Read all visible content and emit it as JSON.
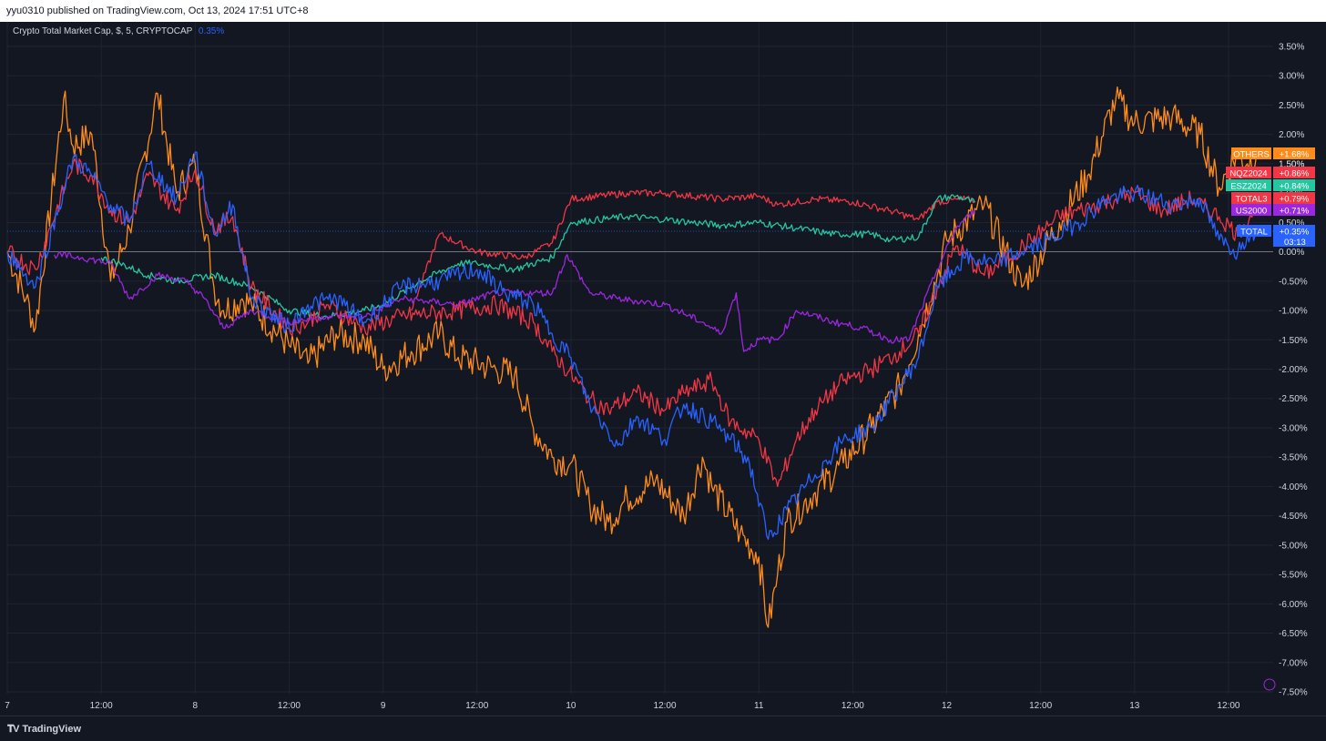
{
  "header": {
    "publisher": "yyu0310 published on TradingView.com, Oct 13, 2024 17:51 UTC+8"
  },
  "legend": {
    "title": "Crypto Total Market Cap, $, 5, CRYPTOCAP",
    "value": "0.35%"
  },
  "footer": {
    "brand": "TradingView",
    "brand_icon": "tradingview-logo-icon"
  },
  "colors": {
    "background": "#131722",
    "grid": "#1f2430",
    "axis_text": "#d1d4dc",
    "others": "#ff8c1a",
    "nqz2024": "#f23645",
    "esz2024": "#26c6a0",
    "total3": "#f23645",
    "us2000": "#9c27e0",
    "total": "#2962ff"
  },
  "chart_data": {
    "type": "line",
    "title": "Crypto Total Market Cap, $, 5, CRYPTOCAP",
    "scale": "percent",
    "ylim": [
      -7.6,
      3.8
    ],
    "y_ticks": [
      "3.50%",
      "3.00%",
      "2.50%",
      "2.00%",
      "1.50%",
      "1.00%",
      "0.50%",
      "0.00%",
      "-0.50%",
      "-1.00%",
      "-1.50%",
      "-2.00%",
      "-2.50%",
      "-3.00%",
      "-3.50%",
      "-4.00%",
      "-4.50%",
      "-5.00%",
      "-5.50%",
      "-6.00%",
      "-6.50%",
      "-7.00%",
      "-7.50%"
    ],
    "y_tick_values": [
      3.5,
      3.0,
      2.5,
      2.0,
      1.5,
      1.0,
      0.5,
      0.0,
      -0.5,
      -1.0,
      -1.5,
      -2.0,
      -2.5,
      -3.0,
      -3.5,
      -4.0,
      -4.5,
      -5.0,
      -5.5,
      -6.0,
      -6.5,
      -7.0,
      -7.5
    ],
    "xlim": [
      7.0,
      13.7
    ],
    "x_ticks": [
      "7",
      "12:00",
      "8",
      "12:00",
      "9",
      "12:00",
      "10",
      "12:00",
      "11",
      "12:00",
      "12",
      "12:00",
      "13",
      "12:00"
    ],
    "x_tick_values": [
      7.0,
      7.5,
      8.0,
      8.5,
      9.0,
      9.5,
      10.0,
      10.5,
      11.0,
      11.5,
      12.0,
      12.5,
      13.0,
      13.5
    ],
    "grid": true,
    "series": [
      {
        "name": "OTHERS",
        "color": "#ff8c1a",
        "last_label": "+1.68%",
        "last_value": 1.68,
        "x": [
          7.0,
          7.1,
          7.15,
          7.3,
          7.35,
          7.45,
          7.55,
          7.65,
          7.8,
          7.9,
          8.0,
          8.1,
          8.15,
          8.25,
          8.3,
          8.5,
          8.6,
          8.75,
          8.9,
          9.0,
          9.15,
          9.3,
          9.4,
          9.6,
          9.7,
          9.8,
          9.9,
          10.0,
          10.1,
          10.2,
          10.3,
          10.45,
          10.6,
          10.7,
          10.75,
          10.9,
          11.0,
          11.05,
          11.1,
          11.15,
          11.3,
          11.45,
          11.6,
          11.75,
          11.85,
          11.95,
          12.0,
          12.2,
          12.4,
          12.6,
          12.75,
          12.9,
          13.0,
          13.2,
          13.35,
          13.45,
          13.55,
          13.6,
          13.65
        ],
        "y": [
          0.0,
          -0.8,
          -1.3,
          2.6,
          1.8,
          2.0,
          -0.5,
          0.4,
          2.7,
          1.0,
          1.5,
          -0.6,
          -1.0,
          -0.8,
          -0.9,
          -1.6,
          -1.9,
          -1.4,
          -1.5,
          -2.0,
          -1.7,
          -1.4,
          -1.8,
          -2.0,
          -2.1,
          -3.0,
          -3.5,
          -3.6,
          -4.3,
          -4.6,
          -4.2,
          -3.9,
          -4.5,
          -3.5,
          -4.0,
          -4.8,
          -5.2,
          -6.4,
          -5.5,
          -4.6,
          -4.1,
          -3.6,
          -3.0,
          -2.3,
          -1.4,
          -0.4,
          0.2,
          0.8,
          -0.6,
          0.5,
          1.3,
          2.6,
          2.2,
          2.3,
          2.0,
          1.1,
          1.7,
          1.5,
          1.68
        ]
      },
      {
        "name": "NQZ2024",
        "color": "#f23645",
        "last_label": "+0.86%",
        "last_value": 0.86,
        "x": [
          9.15,
          9.3,
          9.5,
          9.75,
          9.9,
          10.0,
          10.3,
          10.5,
          10.8,
          11.0,
          11.1,
          11.3,
          11.5,
          11.7,
          11.85,
          11.95,
          12.1,
          12.15
        ],
        "y": [
          -1.0,
          0.3,
          0.0,
          -0.1,
          0.15,
          0.9,
          1.0,
          1.0,
          0.9,
          0.95,
          0.8,
          0.9,
          0.85,
          0.7,
          0.55,
          0.85,
          0.9,
          0.86
        ]
      },
      {
        "name": "ESZ2024",
        "color": "#26c6a0",
        "last_label": "+0.84%",
        "last_value": 0.84,
        "x": [
          7.5,
          7.6,
          7.75,
          7.9,
          8.1,
          8.3,
          8.5,
          8.7,
          8.9,
          9.0,
          9.2,
          9.4,
          9.5,
          9.7,
          9.9,
          10.0,
          10.3,
          10.5,
          10.8,
          11.0,
          11.2,
          11.4,
          11.6,
          11.7,
          11.85,
          11.95,
          12.05,
          12.15
        ],
        "y": [
          -0.1,
          -0.2,
          -0.4,
          -0.5,
          -0.4,
          -0.6,
          -1.0,
          -1.1,
          -1.0,
          -0.9,
          -0.5,
          -0.2,
          -0.2,
          -0.3,
          -0.1,
          0.5,
          0.6,
          0.55,
          0.45,
          0.5,
          0.4,
          0.3,
          0.3,
          0.2,
          0.25,
          0.9,
          0.95,
          0.84
        ]
      },
      {
        "name": "TOTAL3",
        "color": "#f23645",
        "last_label": "+0.79%",
        "last_value": 0.79,
        "x": [
          7.0,
          7.15,
          7.35,
          7.45,
          7.55,
          7.65,
          7.75,
          7.9,
          8.0,
          8.1,
          8.2,
          8.3,
          8.5,
          8.6,
          8.7,
          8.9,
          9.1,
          9.4,
          9.6,
          9.8,
          9.9,
          10.1,
          10.2,
          10.35,
          10.5,
          10.6,
          10.75,
          10.85,
          11.0,
          11.1,
          11.2,
          11.3,
          11.45,
          11.6,
          11.75,
          11.85,
          11.95,
          12.05,
          12.2,
          12.45,
          12.6,
          12.8,
          12.9,
          13.0,
          13.15,
          13.3,
          13.45,
          13.55,
          13.65
        ],
        "y": [
          0.0,
          -0.3,
          1.5,
          1.3,
          0.7,
          0.5,
          1.3,
          0.7,
          1.4,
          0.4,
          0.6,
          -0.6,
          -1.3,
          -1.2,
          -0.9,
          -1.3,
          -1.1,
          -1.0,
          -0.9,
          -1.2,
          -1.7,
          -2.5,
          -2.7,
          -2.4,
          -2.7,
          -2.4,
          -2.2,
          -2.9,
          -3.2,
          -4.0,
          -3.2,
          -2.7,
          -2.2,
          -2.0,
          -1.7,
          -1.4,
          -0.6,
          0.1,
          -0.4,
          0.2,
          0.6,
          0.8,
          0.9,
          1.0,
          0.7,
          0.9,
          0.6,
          0.3,
          0.79
        ]
      },
      {
        "name": "US2000",
        "color": "#9c27e0",
        "last_label": "+0.71%",
        "last_value": 0.71,
        "x": [
          7.25,
          7.4,
          7.55,
          7.65,
          7.8,
          7.95,
          8.05,
          8.15,
          8.3,
          8.5,
          8.7,
          8.9,
          9.1,
          9.4,
          9.6,
          9.8,
          9.9,
          9.98,
          10.1,
          10.25,
          10.5,
          10.7,
          10.8,
          10.88,
          10.92,
          11.0,
          11.1,
          11.2,
          11.4,
          11.55,
          11.7,
          11.8,
          11.95,
          12.05,
          12.15
        ],
        "y": [
          -0.05,
          -0.1,
          -0.2,
          -0.8,
          -0.4,
          -0.5,
          -0.8,
          -1.3,
          -1.0,
          -1.2,
          -1.1,
          -1.1,
          -0.8,
          -0.9,
          -0.7,
          -0.7,
          -0.7,
          -0.05,
          -0.7,
          -0.8,
          -0.9,
          -1.2,
          -1.4,
          -0.7,
          -1.7,
          -1.5,
          -1.5,
          -1.0,
          -1.2,
          -1.3,
          -1.5,
          -1.5,
          -0.3,
          0.4,
          0.71
        ]
      },
      {
        "name": "TOTAL",
        "color": "#2962ff",
        "last_label": "+0.35%",
        "last_value": 0.35,
        "x": [
          7.0,
          7.15,
          7.35,
          7.45,
          7.55,
          7.65,
          7.75,
          7.9,
          8.0,
          8.1,
          8.2,
          8.3,
          8.5,
          8.6,
          8.75,
          8.9,
          9.1,
          9.3,
          9.5,
          9.65,
          9.8,
          9.9,
          10.0,
          10.1,
          10.25,
          10.35,
          10.5,
          10.6,
          10.75,
          10.85,
          10.95,
          11.05,
          11.15,
          11.3,
          11.45,
          11.6,
          11.75,
          11.85,
          11.95,
          12.1,
          12.25,
          12.4,
          12.55,
          12.7,
          12.85,
          13.0,
          13.2,
          13.35,
          13.45,
          13.55,
          13.6,
          13.65
        ],
        "y": [
          0.0,
          -0.6,
          1.6,
          1.3,
          0.8,
          0.5,
          1.5,
          0.9,
          1.7,
          0.3,
          0.8,
          -0.8,
          -1.3,
          -0.9,
          -0.8,
          -1.2,
          -0.6,
          -0.5,
          -0.3,
          -0.7,
          -0.9,
          -1.4,
          -1.8,
          -2.6,
          -3.3,
          -2.8,
          -3.2,
          -2.6,
          -2.9,
          -3.2,
          -3.6,
          -4.9,
          -4.4,
          -3.8,
          -3.2,
          -3.0,
          -2.3,
          -1.8,
          -0.6,
          -0.1,
          -0.2,
          0.0,
          0.2,
          0.5,
          0.9,
          1.0,
          0.8,
          0.9,
          0.2,
          0.0,
          0.3,
          0.35
        ]
      }
    ],
    "zero_line": 0.0,
    "price_line": 0.35,
    "countdown": "03:13",
    "axis_right_extra_label": "1.50%"
  }
}
